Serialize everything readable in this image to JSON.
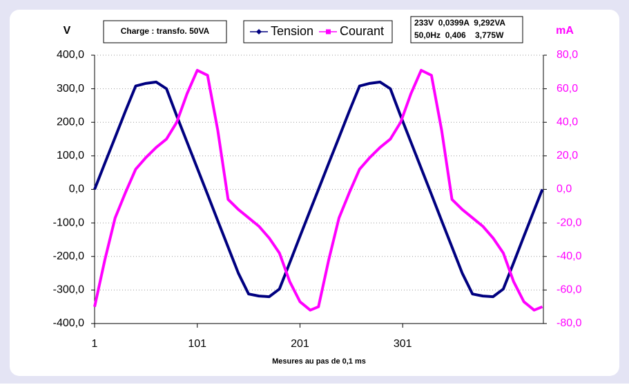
{
  "chart_data": {
    "type": "line",
    "y_label": "V",
    "y2_label": "mA",
    "x_label": "Mesures au pas de 0,1 ms",
    "annotations": [
      "Charge : transfo. 50VA",
      "233V  0,0399A  9,292VA",
      "50,0Hz  0,406    3,775W"
    ],
    "x": [
      1,
      11,
      21,
      31,
      41,
      51,
      61,
      71,
      81,
      91,
      101,
      111,
      121,
      131,
      141,
      151,
      161,
      171,
      181,
      191,
      201,
      211,
      219,
      229,
      239,
      249,
      259,
      269,
      279,
      289,
      299,
      309,
      319,
      329,
      339,
      349,
      359,
      369,
      379,
      389,
      399,
      409,
      419,
      429,
      437
    ],
    "xlim": [
      1,
      438
    ],
    "xticks": [
      1,
      101,
      201,
      301
    ],
    "ylim": [
      -400,
      400
    ],
    "yticks": [
      {
        "value": -400,
        "label": "-400,0"
      },
      {
        "value": -300,
        "label": "-300,0"
      },
      {
        "value": -200,
        "label": "-200,0"
      },
      {
        "value": -100,
        "label": "-100,0"
      },
      {
        "value": 0,
        "label": "0,0"
      },
      {
        "value": 100,
        "label": "100,0"
      },
      {
        "value": 200,
        "label": "200,0"
      },
      {
        "value": 300,
        "label": "300,0"
      },
      {
        "value": 400,
        "label": "400,0"
      }
    ],
    "y2lim": [
      -80,
      80
    ],
    "y2ticks": [
      {
        "value": -80,
        "label": "-80,0"
      },
      {
        "value": -60,
        "label": "-60,0"
      },
      {
        "value": -40,
        "label": "-40,0"
      },
      {
        "value": -20,
        "label": "-20,0"
      },
      {
        "value": 0,
        "label": "0,0"
      },
      {
        "value": 20,
        "label": "20,0"
      },
      {
        "value": 40,
        "label": "40,0"
      },
      {
        "value": 60,
        "label": "60,0"
      },
      {
        "value": 80,
        "label": "80,0"
      }
    ],
    "grid": true,
    "series": [
      {
        "name": "Tension",
        "color": "#000080",
        "marker": "diamond",
        "values": [
          0,
          78,
          155,
          233,
          308,
          316,
          320,
          300,
          219,
          141,
          63,
          -15,
          -94,
          -172,
          -250,
          -312,
          -318,
          -320,
          -297,
          -219,
          -140,
          -62,
          0,
          78,
          155,
          233,
          308,
          316,
          320,
          300,
          219,
          141,
          63,
          -15,
          -94,
          -172,
          -250,
          -312,
          -318,
          -320,
          -297,
          -219,
          -140,
          -62,
          0
        ]
      },
      {
        "name": "Courant",
        "color": "#ff00ff",
        "marker": "square",
        "axis": "y2",
        "values": [
          -70,
          -42,
          -17,
          -2,
          12,
          19,
          25,
          30,
          40,
          57,
          71,
          68,
          35,
          -6,
          -12,
          -17,
          -22,
          -29,
          -38,
          -55,
          -67,
          -72,
          -70,
          -42,
          -17,
          -2,
          12,
          19,
          25,
          30,
          40,
          57,
          71,
          68,
          35,
          -6,
          -12,
          -17,
          -22,
          -29,
          -38,
          -55,
          -67,
          -72,
          -70
        ]
      }
    ]
  }
}
